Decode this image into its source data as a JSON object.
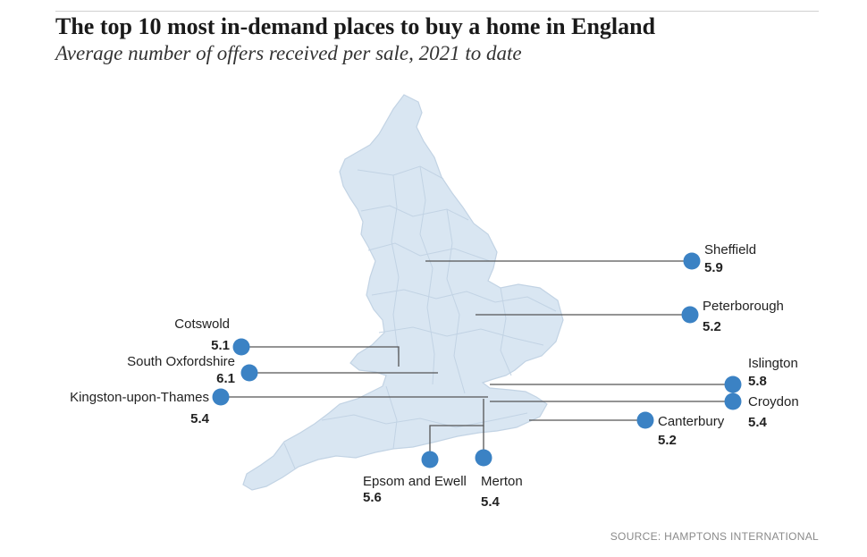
{
  "header": {
    "title": "The top 10 most in-demand places to buy a home in England",
    "subtitle": "Average number of offers received per sale, 2021 to date"
  },
  "source": "SOURCE: HAMPTONS INTERNATIONAL",
  "colors": {
    "land": "#d9e6f2",
    "boundary": "#c2d3e4",
    "marker": "#3b82c4",
    "leader": "#555555"
  },
  "places": [
    {
      "id": "sheffield",
      "name": "Sheffield",
      "offers": "5.9"
    },
    {
      "id": "peterborough",
      "name": "Peterborough",
      "offers": "5.2"
    },
    {
      "id": "cotswold",
      "name": "Cotswold",
      "offers": "5.1"
    },
    {
      "id": "south-oxfordshire",
      "name": "South Oxfordshire",
      "offers": "6.1"
    },
    {
      "id": "kingston",
      "name": "Kingston-upon-Thames",
      "offers": "5.4"
    },
    {
      "id": "islington",
      "name": "Islington",
      "offers": "5.8"
    },
    {
      "id": "croydon",
      "name": "Croydon",
      "offers": "5.4"
    },
    {
      "id": "canterbury",
      "name": "Canterbury",
      "offers": "5.2"
    },
    {
      "id": "epsom",
      "name": "Epsom and Ewell",
      "offers": "5.6"
    },
    {
      "id": "merton",
      "name": "Merton",
      "offers": "5.4"
    }
  ]
}
